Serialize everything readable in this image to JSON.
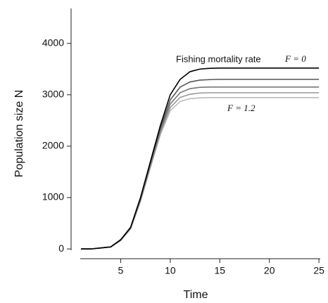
{
  "chart_data": {
    "type": "line",
    "xlabel": "Time",
    "ylabel": "Population size N",
    "annotations": [
      "Fishing mortality rate",
      "F = 0",
      "F = 1.2"
    ],
    "x": [
      1,
      2,
      3,
      4,
      5,
      6,
      7,
      8,
      9,
      10,
      11,
      12,
      13,
      14,
      15,
      16,
      17,
      18,
      19,
      20,
      21,
      22,
      23,
      24,
      25
    ],
    "series": [
      {
        "color": "#000000",
        "values": [
          0,
          0,
          20,
          40,
          180,
          420,
          1000,
          1700,
          2400,
          3000,
          3300,
          3450,
          3500,
          3515,
          3520,
          3520,
          3520,
          3520,
          3520,
          3520,
          3520,
          3520,
          3520,
          3520,
          3520
        ]
      },
      {
        "color": "#555555",
        "values": [
          0,
          0,
          20,
          40,
          175,
          410,
          980,
          1670,
          2350,
          2900,
          3150,
          3250,
          3285,
          3295,
          3300,
          3300,
          3300,
          3300,
          3300,
          3300,
          3300,
          3300,
          3300,
          3300,
          3300
        ]
      },
      {
        "color": "#777777",
        "values": [
          0,
          0,
          20,
          40,
          170,
          400,
          960,
          1640,
          2300,
          2820,
          3040,
          3120,
          3145,
          3150,
          3150,
          3150,
          3150,
          3150,
          3150,
          3150,
          3150,
          3150,
          3150,
          3150,
          3150
        ]
      },
      {
        "color": "#999999",
        "values": [
          0,
          0,
          20,
          40,
          165,
          395,
          940,
          1610,
          2260,
          2750,
          2950,
          3010,
          3035,
          3040,
          3040,
          3040,
          3040,
          3040,
          3040,
          3040,
          3040,
          3040,
          3040,
          3040,
          3040
        ]
      },
      {
        "color": "#bbbbbb",
        "values": [
          0,
          0,
          20,
          40,
          160,
          390,
          920,
          1580,
          2220,
          2690,
          2870,
          2925,
          2940,
          2945,
          2945,
          2945,
          2945,
          2945,
          2945,
          2945,
          2945,
          2945,
          2945,
          2945,
          2945
        ]
      }
    ],
    "xlim": [
      0,
      25.7
    ],
    "xticks": [
      5,
      10,
      15,
      20,
      25
    ],
    "ylim": [
      -190,
      4680
    ],
    "yticks": [
      0,
      1000,
      2000,
      3000,
      4000
    ],
    "grid": false
  }
}
